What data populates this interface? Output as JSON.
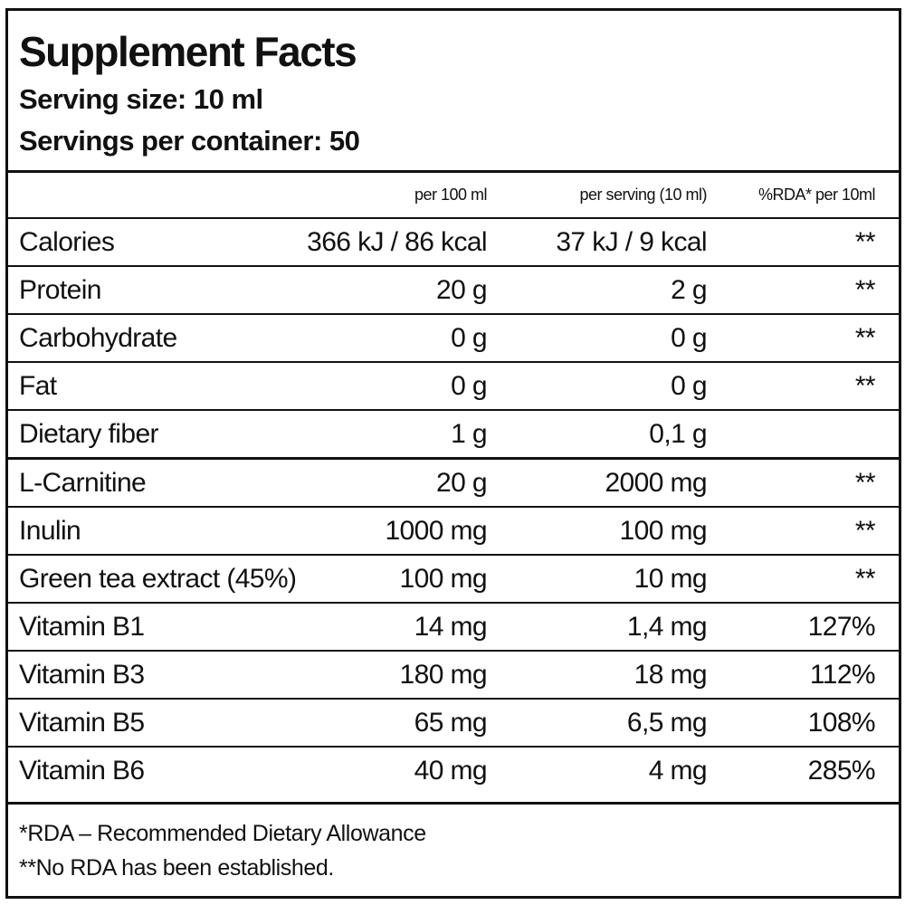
{
  "header": {
    "title": "Supplement Facts",
    "serving_size": "Serving size: 10 ml",
    "servings_per_container": "Servings per container: 50"
  },
  "table": {
    "columns": [
      "per 100 ml",
      "per serving (10 ml)",
      "%RDA* per 10ml"
    ],
    "rows": [
      [
        "Calories",
        "366 kJ / 86 kcal",
        "37 kJ / 9 kcal",
        "**"
      ],
      [
        "Protein",
        "20 g",
        "2 g",
        "**"
      ],
      [
        "Carbohydrate",
        "0 g",
        "0 g",
        "**"
      ],
      [
        "Fat",
        "0 g",
        "0 g",
        "**"
      ],
      [
        "Dietary fiber",
        "1 g",
        "0,1 g"
      ],
      [
        "L-Carnitine",
        "20 g",
        "2000 mg",
        "**"
      ],
      [
        "Inulin",
        "1000 mg",
        "100 mg",
        "**"
      ],
      [
        "Green tea extract (45%)",
        "100 mg",
        "10 mg",
        "**"
      ],
      [
        "Vitamin B1",
        "14 mg",
        "1,4 mg",
        "127%"
      ],
      [
        "Vitamin B3",
        "180 mg",
        "18 mg",
        "112%"
      ],
      [
        "Vitamin B5",
        "65 mg",
        "6,5 mg",
        "108%"
      ],
      [
        "Vitamin B6",
        "40 mg",
        "4 mg",
        "285%"
      ]
    ]
  },
  "footnotes": [
    "*RDA – Recommended Dietary Allowance",
    "**No RDA has been established."
  ]
}
